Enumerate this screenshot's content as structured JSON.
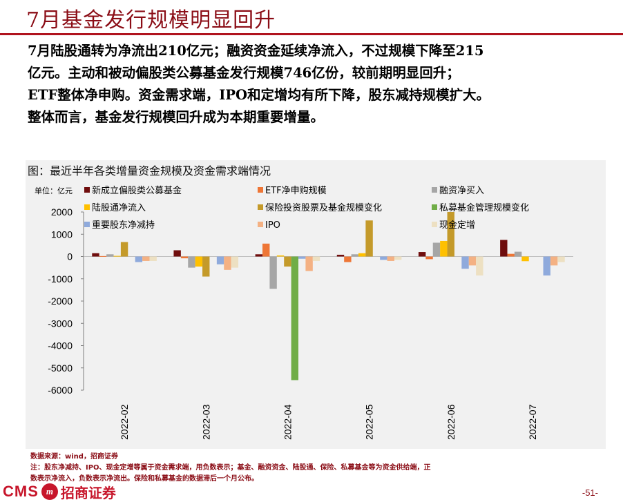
{
  "page": {
    "title": "7月基金发行规模明显回升",
    "summary_lines": [
      "7月陆股通转为净流出210亿元；融资资金延续净流入，不过规模下降至215",
      "亿元。主动和被动偏股类公募基金发行规模746亿份，较前期明显回升；",
      "ETF整体净申购。资金需求端，IPO和定增均有所下降，股东减持规模扩大。",
      "整体而言，基金发行规模回升成为本期重要增量。"
    ],
    "notes": [
      "数据来源：wind，招商证券",
      "注：股东净减持、IPO、现金定增等属于资金需求端，用负数表示；基金、融资资金、陆股通、保险、私募基金等为资金供给端，正",
      "数表示净流入，负数表示净流出。保险和私募基金的数据滞后一个月公布。"
    ],
    "logo_text": "CMS",
    "logo_emblem": "m",
    "logo_cn": "招商证券",
    "page_number": "-51-"
  },
  "chart_data": {
    "type": "bar",
    "title": "图：最近半年各类增量资金规模及资金需求端情况",
    "unit_label": "单位：亿元",
    "categories": [
      "2022-02",
      "2022-03",
      "2022-04",
      "2022-05",
      "2022-06",
      "2022-07"
    ],
    "ylim": [
      -6000,
      2000
    ],
    "yticks": [
      2000,
      1000,
      0,
      -1000,
      -2000,
      -3000,
      -4000,
      -5000,
      -6000
    ],
    "grid": false,
    "legend_position": "top",
    "series": [
      {
        "name": "新成立偏股类公募基金",
        "color": "#6f0d0d",
        "values": [
          150,
          280,
          100,
          80,
          200,
          746
        ]
      },
      {
        "name": "ETF净申购规模",
        "color": "#ee7636",
        "values": [
          20,
          -80,
          580,
          -250,
          -120,
          120
        ]
      },
      {
        "name": "融资净买入",
        "color": "#a6a6a6",
        "values": [
          100,
          -500,
          -1450,
          100,
          620,
          215
        ]
      },
      {
        "name": "陆股通净流入",
        "color": "#ffc000",
        "values": [
          30,
          -450,
          50,
          150,
          700,
          -210
        ]
      },
      {
        "name": "保险投资股票及基金规模变化",
        "color": "#c49a2a",
        "values": [
          650,
          -900,
          -450,
          1620,
          2000,
          0
        ]
      },
      {
        "name": "私募基金管理规模变化",
        "color": "#70ad47",
        "values": [
          0,
          0,
          -5550,
          0,
          0,
          0
        ]
      },
      {
        "name": "重要股东净减持",
        "color": "#8faadc",
        "values": [
          -250,
          -350,
          -100,
          -150,
          -550,
          -850
        ]
      },
      {
        "name": "IPO",
        "color": "#f4b183",
        "values": [
          -200,
          -600,
          -650,
          -200,
          -400,
          -400
        ]
      },
      {
        "name": "现金定增",
        "color": "#ede0c2",
        "values": [
          -200,
          -500,
          -200,
          -150,
          -850,
          -250
        ]
      }
    ]
  }
}
